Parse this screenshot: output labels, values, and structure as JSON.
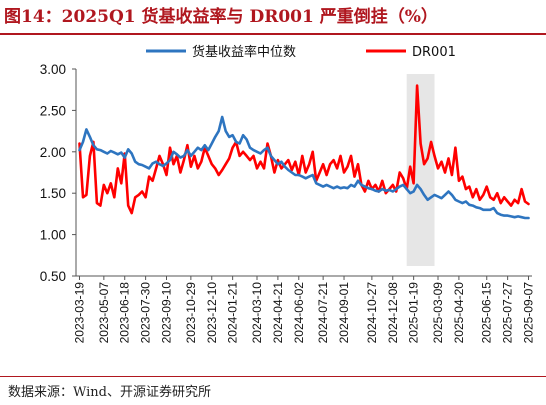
{
  "title": "图14：2025Q1 货基收益率与 DR001 严重倒挂（%）",
  "source": "数据来源：Wind、开源证券研究所",
  "chart_data": {
    "type": "line",
    "title": "图14：2025Q1 货基收益率与 DR001 严重倒挂（%）",
    "xlabel": "",
    "ylabel": "",
    "ylim": [
      0.5,
      3.0
    ],
    "yticks": [
      "0.50",
      "1.00",
      "1.50",
      "2.00",
      "2.50",
      "3.00"
    ],
    "xlim": [
      "2023-03-12",
      "2025-09-14"
    ],
    "xticks": [
      "2023-03-19",
      "2023-05-07",
      "2023-06-18",
      "2023-07-30",
      "2023-09-10",
      "2023-10-29",
      "2023-12-10",
      "2024-01-21",
      "2024-03-10",
      "2024-04-21",
      "2024-06-02",
      "2024-07-21",
      "2024-09-01",
      "2024-10-27",
      "2024-12-08",
      "2025-01-19",
      "2025-03-09",
      "2025-04-20",
      "2025-06-15",
      "2025-07-27",
      "2025-09-07"
    ],
    "grid": false,
    "legend": "top",
    "highlight_period": [
      "2025-01-05",
      "2025-03-02"
    ],
    "highlight_color": "#e6e6e6",
    "series": [
      {
        "name": "货基收益率中位数",
        "color": "#2e75c0",
        "points": [
          [
            "2023-03-19",
            2.02
          ],
          [
            "2023-03-26",
            2.12
          ],
          [
            "2023-04-02",
            2.27
          ],
          [
            "2023-04-09",
            2.18
          ],
          [
            "2023-04-16",
            2.08
          ],
          [
            "2023-04-23",
            2.03
          ],
          [
            "2023-04-30",
            2.02
          ],
          [
            "2023-05-07",
            2.0
          ],
          [
            "2023-05-14",
            1.98
          ],
          [
            "2023-05-21",
            2.01
          ],
          [
            "2023-05-28",
            1.99
          ],
          [
            "2023-06-04",
            1.97
          ],
          [
            "2023-06-11",
            1.99
          ],
          [
            "2023-06-18",
            1.93
          ],
          [
            "2023-06-25",
            2.03
          ],
          [
            "2023-07-02",
            1.98
          ],
          [
            "2023-07-09",
            1.88
          ],
          [
            "2023-07-16",
            1.85
          ],
          [
            "2023-07-23",
            1.84
          ],
          [
            "2023-07-30",
            1.82
          ],
          [
            "2023-08-06",
            1.8
          ],
          [
            "2023-08-13",
            1.86
          ],
          [
            "2023-08-20",
            1.88
          ],
          [
            "2023-08-27",
            1.85
          ],
          [
            "2023-09-03",
            1.83
          ],
          [
            "2023-09-10",
            1.86
          ],
          [
            "2023-09-17",
            1.9
          ],
          [
            "2023-09-24",
            2.0
          ],
          [
            "2023-10-01",
            1.97
          ],
          [
            "2023-10-08",
            1.93
          ],
          [
            "2023-10-15",
            1.95
          ],
          [
            "2023-10-22",
            2.02
          ],
          [
            "2023-10-29",
            1.95
          ],
          [
            "2023-11-05",
            2.0
          ],
          [
            "2023-11-12",
            2.05
          ],
          [
            "2023-11-19",
            2.02
          ],
          [
            "2023-11-26",
            2.08
          ],
          [
            "2023-12-03",
            2.02
          ],
          [
            "2023-12-10",
            2.1
          ],
          [
            "2023-12-17",
            2.18
          ],
          [
            "2023-12-24",
            2.25
          ],
          [
            "2023-12-31",
            2.42
          ],
          [
            "2024-01-07",
            2.25
          ],
          [
            "2024-01-14",
            2.18
          ],
          [
            "2024-01-21",
            2.2
          ],
          [
            "2024-01-28",
            2.12
          ],
          [
            "2024-02-04",
            2.1
          ],
          [
            "2024-02-11",
            2.2
          ],
          [
            "2024-02-18",
            2.15
          ],
          [
            "2024-02-25",
            2.05
          ],
          [
            "2024-03-03",
            2.02
          ],
          [
            "2024-03-10",
            2.0
          ],
          [
            "2024-03-17",
            1.98
          ],
          [
            "2024-03-24",
            2.02
          ],
          [
            "2024-03-31",
            2.05
          ],
          [
            "2024-04-07",
            1.95
          ],
          [
            "2024-04-14",
            1.9
          ],
          [
            "2024-04-21",
            1.85
          ],
          [
            "2024-04-28",
            1.88
          ],
          [
            "2024-05-05",
            1.82
          ],
          [
            "2024-05-12",
            1.78
          ],
          [
            "2024-05-19",
            1.75
          ],
          [
            "2024-05-26",
            1.72
          ],
          [
            "2024-06-02",
            1.72
          ],
          [
            "2024-06-09",
            1.7
          ],
          [
            "2024-06-16",
            1.68
          ],
          [
            "2024-06-23",
            1.7
          ],
          [
            "2024-06-30",
            1.72
          ],
          [
            "2024-07-07",
            1.62
          ],
          [
            "2024-07-14",
            1.6
          ],
          [
            "2024-07-21",
            1.58
          ],
          [
            "2024-07-28",
            1.6
          ],
          [
            "2024-08-04",
            1.58
          ],
          [
            "2024-08-11",
            1.56
          ],
          [
            "2024-08-18",
            1.58
          ],
          [
            "2024-08-25",
            1.56
          ],
          [
            "2024-09-01",
            1.57
          ],
          [
            "2024-09-08",
            1.56
          ],
          [
            "2024-09-15",
            1.6
          ],
          [
            "2024-09-22",
            1.58
          ],
          [
            "2024-09-29",
            1.65
          ],
          [
            "2024-10-06",
            1.6
          ],
          [
            "2024-10-13",
            1.58
          ],
          [
            "2024-10-20",
            1.56
          ],
          [
            "2024-10-27",
            1.55
          ],
          [
            "2024-11-03",
            1.53
          ],
          [
            "2024-11-10",
            1.52
          ],
          [
            "2024-11-17",
            1.55
          ],
          [
            "2024-11-24",
            1.53
          ],
          [
            "2024-12-01",
            1.54
          ],
          [
            "2024-12-08",
            1.52
          ],
          [
            "2024-12-15",
            1.55
          ],
          [
            "2024-12-22",
            1.58
          ],
          [
            "2024-12-29",
            1.6
          ],
          [
            "2025-01-05",
            1.55
          ],
          [
            "2025-01-12",
            1.5
          ],
          [
            "2025-01-19",
            1.52
          ],
          [
            "2025-01-26",
            1.6
          ],
          [
            "2025-02-02",
            1.55
          ],
          [
            "2025-02-09",
            1.48
          ],
          [
            "2025-02-16",
            1.42
          ],
          [
            "2025-02-23",
            1.45
          ],
          [
            "2025-03-02",
            1.48
          ],
          [
            "2025-03-09",
            1.46
          ],
          [
            "2025-03-16",
            1.44
          ],
          [
            "2025-03-23",
            1.48
          ],
          [
            "2025-03-30",
            1.52
          ],
          [
            "2025-04-06",
            1.48
          ],
          [
            "2025-04-13",
            1.42
          ],
          [
            "2025-04-20",
            1.4
          ],
          [
            "2025-04-27",
            1.38
          ],
          [
            "2025-05-04",
            1.4
          ],
          [
            "2025-05-11",
            1.36
          ],
          [
            "2025-05-18",
            1.35
          ],
          [
            "2025-05-25",
            1.33
          ],
          [
            "2025-06-01",
            1.32
          ],
          [
            "2025-06-08",
            1.3
          ],
          [
            "2025-06-15",
            1.3
          ],
          [
            "2025-06-22",
            1.3
          ],
          [
            "2025-06-29",
            1.32
          ],
          [
            "2025-07-06",
            1.26
          ],
          [
            "2025-07-13",
            1.24
          ],
          [
            "2025-07-20",
            1.23
          ],
          [
            "2025-07-27",
            1.23
          ],
          [
            "2025-08-03",
            1.22
          ],
          [
            "2025-08-10",
            1.21
          ],
          [
            "2025-08-17",
            1.22
          ],
          [
            "2025-08-24",
            1.21
          ],
          [
            "2025-08-31",
            1.2
          ],
          [
            "2025-09-07",
            1.2
          ]
        ]
      },
      {
        "name": "DR001",
        "color": "#ff0000",
        "points": [
          [
            "2023-03-19",
            2.1
          ],
          [
            "2023-03-26",
            1.45
          ],
          [
            "2023-04-02",
            1.48
          ],
          [
            "2023-04-09",
            1.95
          ],
          [
            "2023-04-16",
            2.12
          ],
          [
            "2023-04-23",
            1.38
          ],
          [
            "2023-04-30",
            1.35
          ],
          [
            "2023-05-07",
            1.6
          ],
          [
            "2023-05-14",
            1.5
          ],
          [
            "2023-05-21",
            1.62
          ],
          [
            "2023-05-28",
            1.45
          ],
          [
            "2023-06-04",
            1.8
          ],
          [
            "2023-06-11",
            1.62
          ],
          [
            "2023-06-18",
            1.98
          ],
          [
            "2023-06-25",
            1.35
          ],
          [
            "2023-07-02",
            1.26
          ],
          [
            "2023-07-09",
            1.45
          ],
          [
            "2023-07-16",
            1.48
          ],
          [
            "2023-07-23",
            1.52
          ],
          [
            "2023-07-30",
            1.45
          ],
          [
            "2023-08-06",
            1.7
          ],
          [
            "2023-08-13",
            1.65
          ],
          [
            "2023-08-20",
            1.8
          ],
          [
            "2023-08-27",
            1.95
          ],
          [
            "2023-09-03",
            1.85
          ],
          [
            "2023-09-10",
            1.72
          ],
          [
            "2023-09-17",
            2.05
          ],
          [
            "2023-09-24",
            1.85
          ],
          [
            "2023-10-01",
            1.95
          ],
          [
            "2023-10-08",
            1.75
          ],
          [
            "2023-10-15",
            1.9
          ],
          [
            "2023-10-22",
            2.08
          ],
          [
            "2023-10-29",
            1.82
          ],
          [
            "2023-11-05",
            1.95
          ],
          [
            "2023-11-12",
            1.8
          ],
          [
            "2023-11-19",
            1.88
          ],
          [
            "2023-11-26",
            2.05
          ],
          [
            "2023-12-03",
            1.95
          ],
          [
            "2023-12-10",
            1.85
          ],
          [
            "2023-12-17",
            1.8
          ],
          [
            "2023-12-24",
            1.72
          ],
          [
            "2023-12-31",
            1.78
          ],
          [
            "2024-01-07",
            1.85
          ],
          [
            "2024-01-14",
            1.92
          ],
          [
            "2024-01-21",
            2.05
          ],
          [
            "2024-01-28",
            2.12
          ],
          [
            "2024-02-04",
            1.95
          ],
          [
            "2024-02-11",
            2.0
          ],
          [
            "2024-02-18",
            1.95
          ],
          [
            "2024-02-25",
            1.9
          ],
          [
            "2024-03-03",
            1.95
          ],
          [
            "2024-03-10",
            1.8
          ],
          [
            "2024-03-17",
            1.88
          ],
          [
            "2024-03-24",
            1.8
          ],
          [
            "2024-03-31",
            2.1
          ],
          [
            "2024-04-07",
            1.95
          ],
          [
            "2024-04-14",
            1.75
          ],
          [
            "2024-04-21",
            1.9
          ],
          [
            "2024-04-28",
            1.8
          ],
          [
            "2024-05-05",
            1.85
          ],
          [
            "2024-05-12",
            1.9
          ],
          [
            "2024-05-19",
            1.78
          ],
          [
            "2024-05-26",
            1.88
          ],
          [
            "2024-06-02",
            1.72
          ],
          [
            "2024-06-09",
            1.95
          ],
          [
            "2024-06-16",
            1.75
          ],
          [
            "2024-06-23",
            1.85
          ],
          [
            "2024-06-30",
            2.0
          ],
          [
            "2024-07-07",
            1.65
          ],
          [
            "2024-07-14",
            1.75
          ],
          [
            "2024-07-21",
            1.85
          ],
          [
            "2024-07-28",
            1.72
          ],
          [
            "2024-08-04",
            1.85
          ],
          [
            "2024-08-11",
            1.9
          ],
          [
            "2024-08-18",
            1.8
          ],
          [
            "2024-08-25",
            1.95
          ],
          [
            "2024-09-01",
            1.75
          ],
          [
            "2024-09-08",
            1.82
          ],
          [
            "2024-09-15",
            1.95
          ],
          [
            "2024-09-22",
            1.7
          ],
          [
            "2024-09-29",
            1.85
          ],
          [
            "2024-10-06",
            1.6
          ],
          [
            "2024-10-13",
            1.52
          ],
          [
            "2024-10-20",
            1.65
          ],
          [
            "2024-10-27",
            1.55
          ],
          [
            "2024-11-03",
            1.6
          ],
          [
            "2024-11-10",
            1.52
          ],
          [
            "2024-11-17",
            1.65
          ],
          [
            "2024-11-24",
            1.5
          ],
          [
            "2024-12-01",
            1.55
          ],
          [
            "2024-12-08",
            1.6
          ],
          [
            "2024-12-15",
            1.52
          ],
          [
            "2024-12-22",
            1.75
          ],
          [
            "2024-12-29",
            1.68
          ],
          [
            "2025-01-05",
            1.55
          ],
          [
            "2025-01-12",
            1.82
          ],
          [
            "2025-01-19",
            1.62
          ],
          [
            "2025-01-26",
            2.8
          ],
          [
            "2025-02-02",
            2.1
          ],
          [
            "2025-02-09",
            1.85
          ],
          [
            "2025-02-16",
            1.92
          ],
          [
            "2025-02-23",
            2.12
          ],
          [
            "2025-03-02",
            1.95
          ],
          [
            "2025-03-09",
            1.8
          ],
          [
            "2025-03-16",
            1.88
          ],
          [
            "2025-03-23",
            1.75
          ],
          [
            "2025-03-30",
            1.92
          ],
          [
            "2025-04-06",
            1.72
          ],
          [
            "2025-04-13",
            2.05
          ],
          [
            "2025-04-20",
            1.65
          ],
          [
            "2025-04-27",
            1.7
          ],
          [
            "2025-05-04",
            1.55
          ],
          [
            "2025-05-11",
            1.58
          ],
          [
            "2025-05-18",
            1.45
          ],
          [
            "2025-05-25",
            1.55
          ],
          [
            "2025-06-01",
            1.42
          ],
          [
            "2025-06-08",
            1.48
          ],
          [
            "2025-06-15",
            1.58
          ],
          [
            "2025-06-22",
            1.45
          ],
          [
            "2025-06-29",
            1.42
          ],
          [
            "2025-07-06",
            1.5
          ],
          [
            "2025-07-13",
            1.38
          ],
          [
            "2025-07-20",
            1.45
          ],
          [
            "2025-07-27",
            1.4
          ],
          [
            "2025-08-03",
            1.35
          ],
          [
            "2025-08-10",
            1.42
          ],
          [
            "2025-08-17",
            1.38
          ],
          [
            "2025-08-24",
            1.55
          ],
          [
            "2025-08-31",
            1.4
          ],
          [
            "2025-09-07",
            1.37
          ]
        ]
      }
    ]
  }
}
